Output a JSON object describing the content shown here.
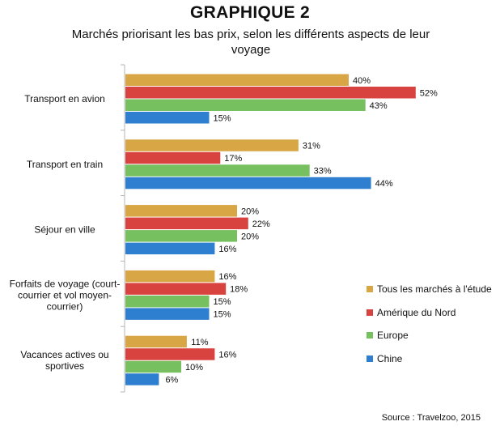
{
  "chart_data": {
    "type": "bar",
    "orientation": "horizontal",
    "title": "GRAPHIQUE 2",
    "subtitle": "Marchés priorisant les bas prix, selon les différents aspects de leur voyage",
    "categories": [
      [
        "Transport en avion"
      ],
      [
        "Transport en train"
      ],
      [
        "Séjour en ville"
      ],
      [
        "Forfaits de voyage (court-",
        "courrier et vol moyen-",
        "courrier)"
      ],
      [
        "Vacances actives ou",
        "sportives"
      ]
    ],
    "series": [
      {
        "name": "Tous les marchés à l'étude",
        "color": "#D9A646",
        "values": [
          40,
          31,
          20,
          16,
          11
        ]
      },
      {
        "name": "Amérique du Nord",
        "color": "#D9433F",
        "values": [
          52,
          17,
          22,
          18,
          16
        ]
      },
      {
        "name": "Europe",
        "color": "#76C05F",
        "values": [
          43,
          33,
          20,
          15,
          10
        ]
      },
      {
        "name": "Chine",
        "color": "#2E7FD0",
        "values": [
          15,
          44,
          16,
          15,
          6
        ]
      }
    ],
    "value_suffix": "%",
    "xlim": [
      0,
      60
    ],
    "grid": false,
    "legend_position": "right"
  },
  "source": "Source : Travelzoo, 2015"
}
